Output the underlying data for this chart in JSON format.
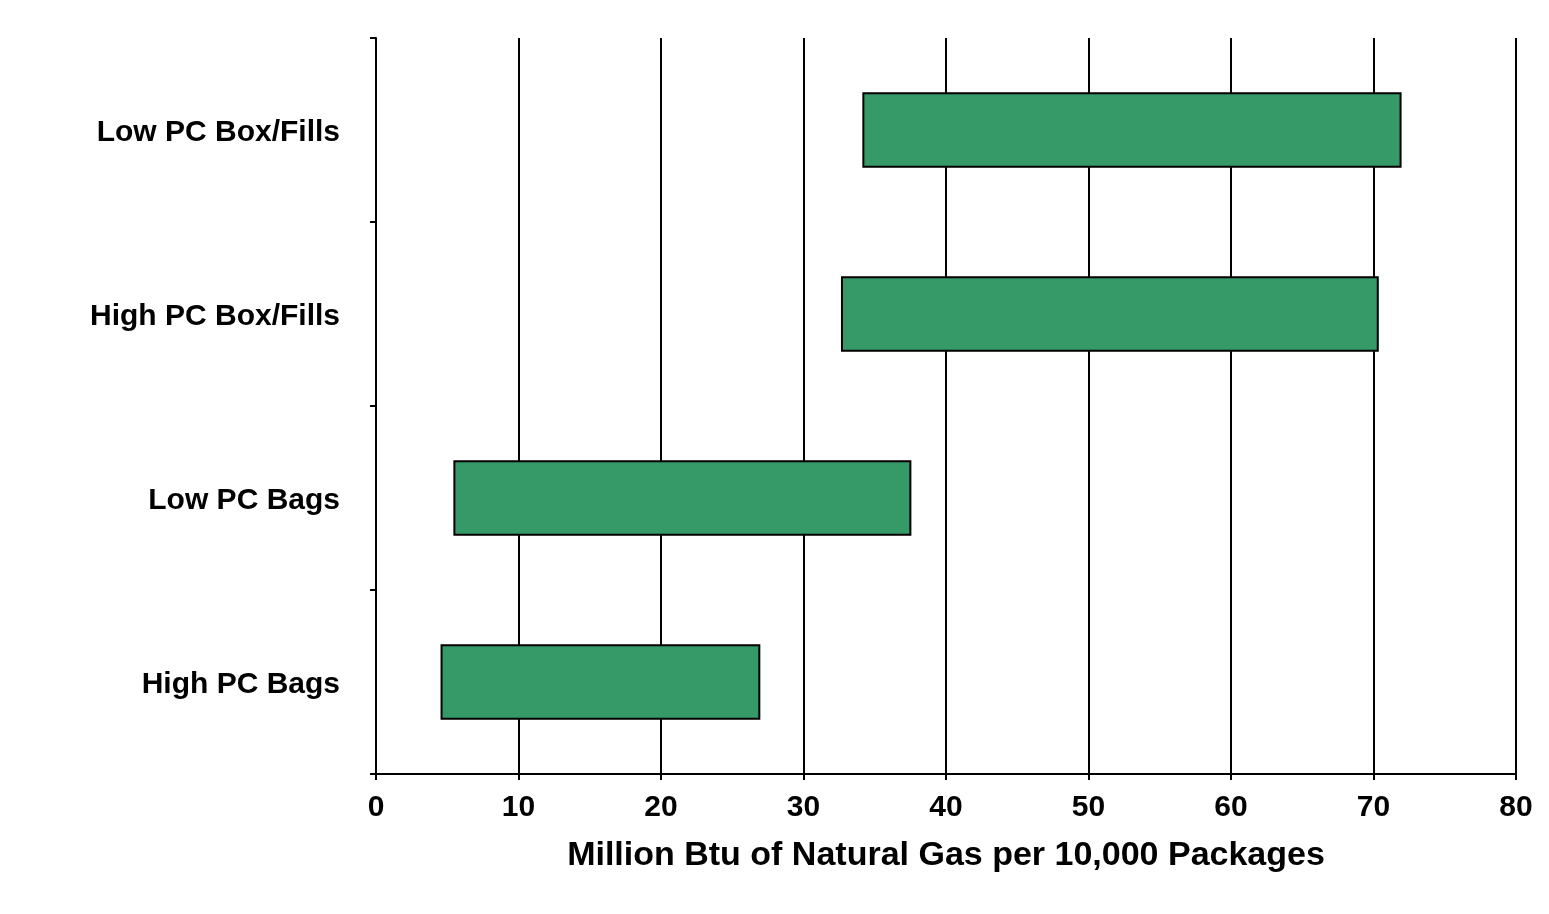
{
  "chart_data": {
    "type": "bar",
    "orientation": "horizontal",
    "categories": [
      "Low PC Box/Fills",
      "High PC Box/Fills",
      "Low PC Bags",
      "High PC Bags"
    ],
    "base": [
      34.2,
      32.7,
      5.5,
      4.6
    ],
    "values": [
      37.7,
      37.6,
      32.0,
      22.3
    ],
    "color": "#359a68",
    "xlabel": "Million Btu of Natural Gas per 10,000 Packages",
    "xlim": [
      0,
      80
    ],
    "xticks": [
      0,
      10,
      20,
      30,
      40,
      50,
      60,
      70,
      80
    ],
    "grid": "x"
  }
}
